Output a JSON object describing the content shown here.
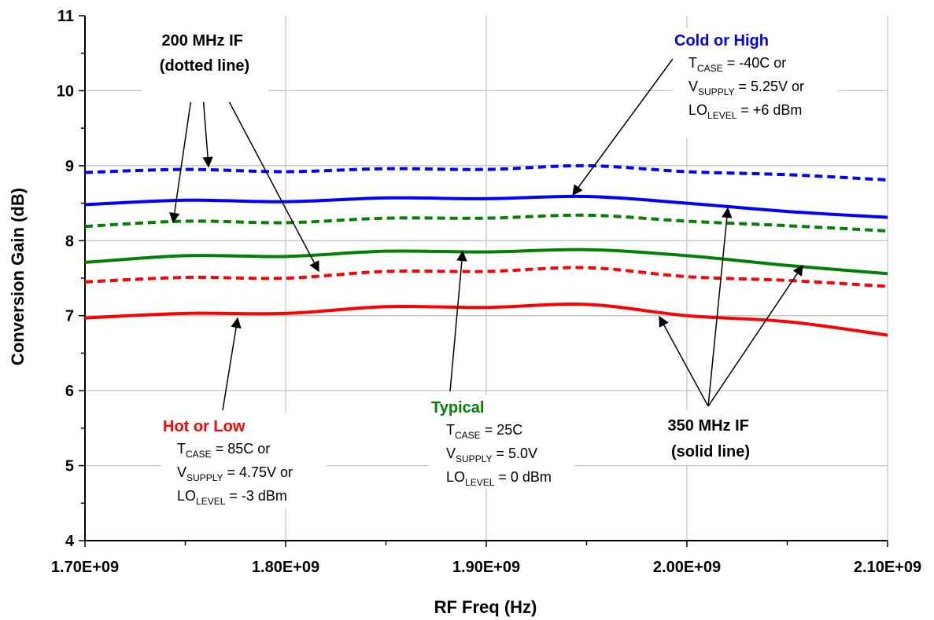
{
  "chart_data": {
    "type": "line",
    "xlabel": "RF Freq (Hz)",
    "ylabel": "Conversion Gain (dB)",
    "xlim": [
      1700000000.0,
      2100000000.0
    ],
    "ylim": [
      4,
      11
    ],
    "x_ticks": [
      1700000000.0,
      1800000000.0,
      1900000000.0,
      2000000000.0,
      2100000000.0
    ],
    "x_tick_labels": [
      "1.70E+09",
      "1.80E+09",
      "1.90E+09",
      "2.00E+09",
      "2.10E+09"
    ],
    "y_ticks": [
      4,
      5,
      6,
      7,
      8,
      9,
      10,
      11
    ],
    "y_tick_labels": [
      "4",
      "5",
      "6",
      "7",
      "8",
      "9",
      "10",
      "11"
    ],
    "grid": true,
    "x": [
      1700000000.0,
      1750000000.0,
      1800000000.0,
      1850000000.0,
      1900000000.0,
      1950000000.0,
      2000000000.0,
      2050000000.0,
      2100000000.0
    ],
    "series": [
      {
        "color": "#0000ff",
        "style": "dotted",
        "values": [
          8.91,
          8.95,
          8.92,
          8.96,
          8.95,
          9.0,
          8.92,
          8.88,
          8.81
        ]
      },
      {
        "color": "#0000ff",
        "style": "solid",
        "values": [
          8.48,
          8.54,
          8.52,
          8.57,
          8.56,
          8.59,
          8.5,
          8.39,
          8.31
        ]
      },
      {
        "color": "#008000",
        "style": "dotted",
        "values": [
          8.19,
          8.26,
          8.24,
          8.3,
          8.3,
          8.34,
          8.26,
          8.2,
          8.13
        ]
      },
      {
        "color": "#008000",
        "style": "solid",
        "values": [
          7.71,
          7.8,
          7.79,
          7.86,
          7.85,
          7.88,
          7.8,
          7.67,
          7.56
        ]
      },
      {
        "color": "#ff0000",
        "style": "dotted",
        "values": [
          7.45,
          7.51,
          7.5,
          7.59,
          7.59,
          7.64,
          7.52,
          7.47,
          7.39
        ]
      },
      {
        "color": "#ff0000",
        "style": "solid",
        "values": [
          6.97,
          7.03,
          7.03,
          7.12,
          7.11,
          7.15,
          7.0,
          6.92,
          6.74
        ]
      }
    ]
  },
  "annotations": {
    "dotted_if": {
      "line1": "200 MHz IF",
      "line2": "(dotted line)"
    },
    "solid_if": {
      "line1": "350 MHz IF",
      "line2": "(solid line)"
    },
    "cold": {
      "title": "Cold or High",
      "color": "#0000ff",
      "t_main": "T",
      "t_sub": "CASE",
      "t_val": " = -40C or",
      "v_main": "V",
      "v_sub": "SUPPLY",
      "v_val": " = 5.25V or",
      "lo_main": "LO",
      "lo_sub": "LEVEL",
      "lo_val": " = +6 dBm"
    },
    "typical": {
      "title": "Typical",
      "color": "#008000",
      "t_main": "T",
      "t_sub": "CASE",
      "t_val": " = 25C",
      "v_main": "V",
      "v_sub": "SUPPLY",
      "v_val": " = 5.0V",
      "lo_main": "LO",
      "lo_sub": "LEVEL",
      "lo_val": " = 0 dBm"
    },
    "hot": {
      "title": "Hot or Low",
      "color": "#ff0000",
      "t_main": "T",
      "t_sub": "CASE",
      "t_val": " = 85C or",
      "v_main": "V",
      "v_sub": "SUPPLY",
      "v_val": " = 4.75V or",
      "lo_main": "LO",
      "lo_sub": "LEVEL",
      "lo_val": " = -3 dBm"
    }
  }
}
